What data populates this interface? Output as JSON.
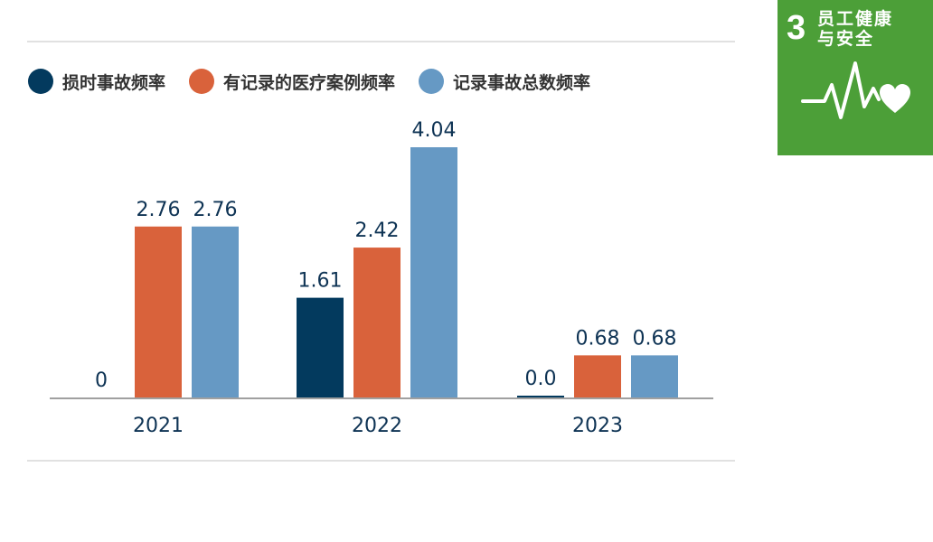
{
  "sdg_badge": {
    "number": "3",
    "title_line1": "员工健康",
    "title_line2": "与安全",
    "icon": "heartbeat-heart-icon",
    "color": "#4c9f38"
  },
  "legend": [
    {
      "label": "损时事故频率",
      "color": "#033a5e"
    },
    {
      "label": "有记录的医疗案例频率",
      "color": "#d9623b"
    },
    {
      "label": "记录事故总数频率",
      "color": "#6699c4"
    }
  ],
  "chart_data": {
    "type": "bar",
    "categories": [
      "2021",
      "2022",
      "2023"
    ],
    "series": [
      {
        "name": "损时事故频率",
        "color": "#033a5e",
        "values": [
          0,
          1.61,
          0.0
        ],
        "labels": [
          "0",
          "1.61",
          "0.0"
        ]
      },
      {
        "name": "有记录的医疗案例频率",
        "color": "#d9623b",
        "values": [
          2.76,
          2.42,
          0.68
        ],
        "labels": [
          "2.76",
          "2.42",
          "0.68"
        ]
      },
      {
        "name": "记录事故总数频率",
        "color": "#6699c4",
        "values": [
          2.76,
          4.04,
          0.68
        ],
        "labels": [
          "2.76",
          "4.04",
          "0.68"
        ]
      }
    ],
    "ylim": [
      0,
      4.04
    ],
    "grid": false,
    "legend_position": "top-left"
  }
}
